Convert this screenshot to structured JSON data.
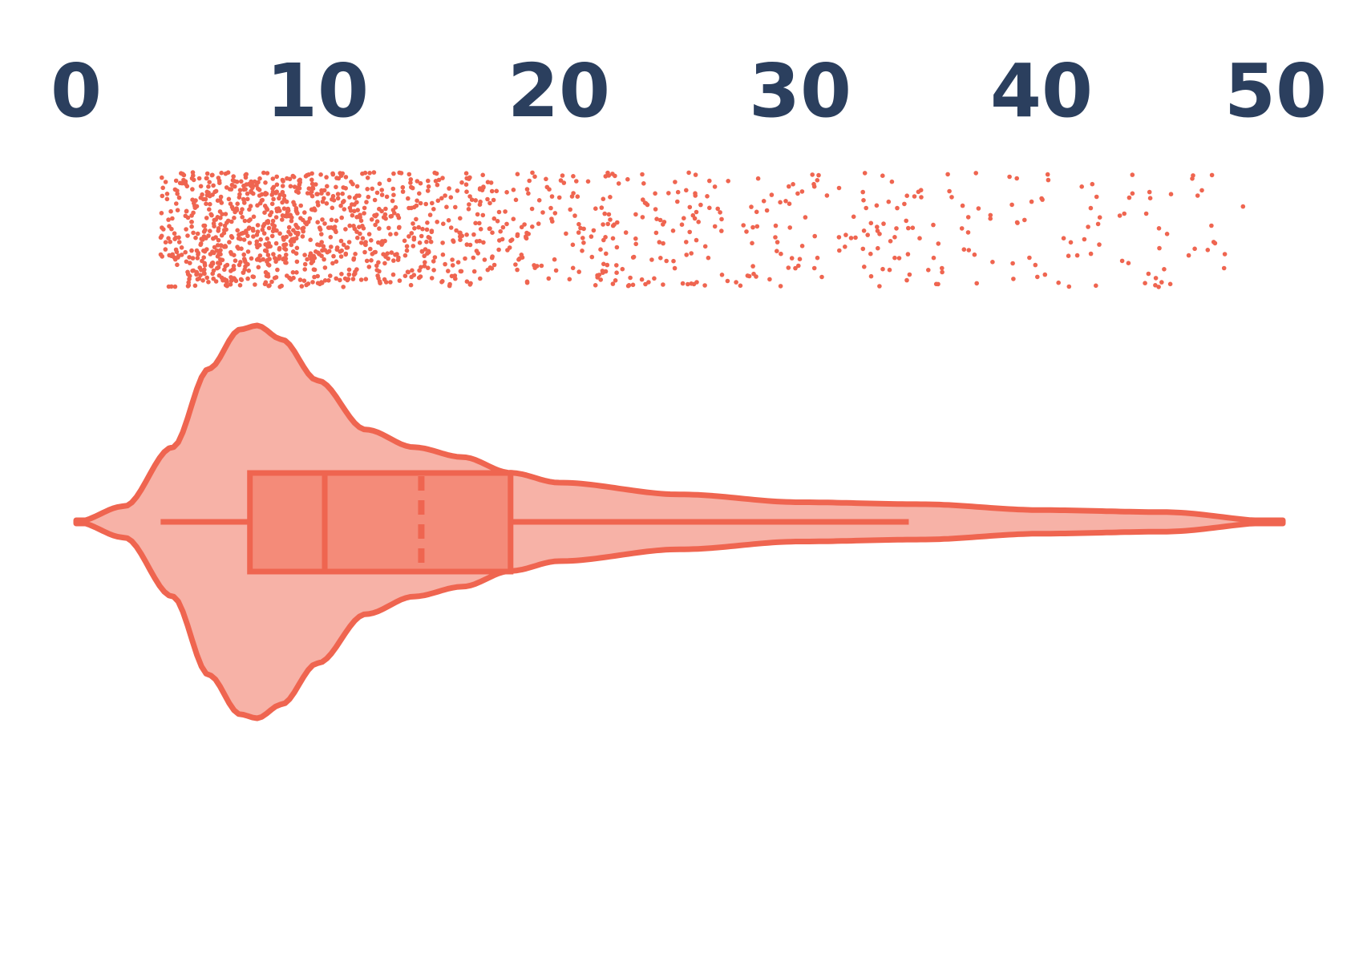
{
  "chart_data": {
    "type": "violin",
    "title": "",
    "xlabel": "",
    "ylabel": "",
    "xlim": [
      0,
      50
    ],
    "x_ticks": [
      {
        "value": 0,
        "label": "0"
      },
      {
        "value": 10,
        "label": "10"
      },
      {
        "value": 20,
        "label": "20"
      },
      {
        "value": 30,
        "label": "30"
      },
      {
        "value": 40,
        "label": "40"
      },
      {
        "value": 50,
        "label": "50"
      }
    ],
    "colors": {
      "stroke": "#ef6550",
      "violin_fill": "#f7b2a7",
      "box_fill": "#f48b79",
      "points": "#ef6550",
      "tick_text": "#2b3f5e"
    },
    "box": {
      "whisker_low": 3.5,
      "q1": 7.2,
      "median": 10.3,
      "mean": 14.3,
      "q3": 18.0,
      "whisker_high": 34.5
    },
    "density": [
      [
        0,
        0.0
      ],
      [
        2,
        0.08
      ],
      [
        4,
        0.38
      ],
      [
        5.5,
        0.78
      ],
      [
        6.8,
        0.98
      ],
      [
        7.5,
        1.0
      ],
      [
        8.5,
        0.93
      ],
      [
        10,
        0.72
      ],
      [
        12,
        0.47
      ],
      [
        14,
        0.38
      ],
      [
        16,
        0.33
      ],
      [
        18,
        0.25
      ],
      [
        20,
        0.2
      ],
      [
        25,
        0.14
      ],
      [
        30,
        0.1
      ],
      [
        35,
        0.09
      ],
      [
        40,
        0.06
      ],
      [
        45,
        0.05
      ],
      [
        50,
        0.0
      ]
    ],
    "points_summary": {
      "count": 1400,
      "min": 3.5,
      "max": 50
    }
  }
}
